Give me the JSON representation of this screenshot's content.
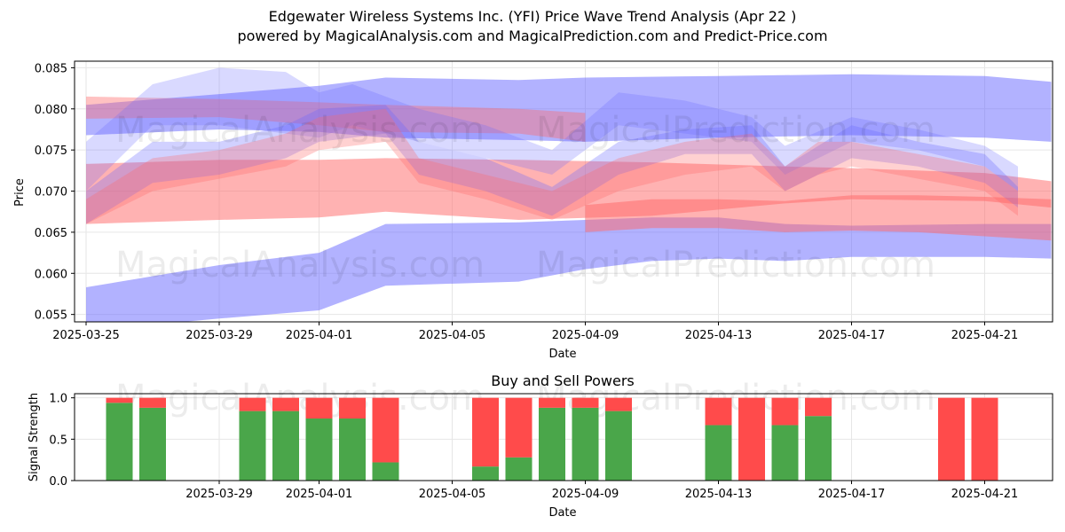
{
  "header": {
    "title_line1": "Edgewater Wireless Systems Inc. (YFI) Price Wave Trend Analysis (Apr 22 )",
    "title_line2": "powered by MagicalAnalysis.com and MagicalPrediction.com and Predict-Price.com"
  },
  "watermarks": [
    "MagicalAnalysis.com",
    "MagicalPrediction.com"
  ],
  "colors": {
    "blue_band": "#6666ff",
    "red_band": "#ff6666",
    "buy": "#4aa64a",
    "sell": "#ff4b4b",
    "grid": "#e6e6e6"
  },
  "chart_data": [
    {
      "type": "area",
      "title": "",
      "xlabel": "Date",
      "ylabel": "Price",
      "x_start": "2025-03-25",
      "x_ticks": [
        "2025-03-25",
        "2025-03-29",
        "2025-04-01",
        "2025-04-05",
        "2025-04-09",
        "2025-04-13",
        "2025-04-17",
        "2025-04-21"
      ],
      "y_ticks": [
        0.055,
        0.06,
        0.065,
        0.07,
        0.075,
        0.08,
        0.085
      ],
      "ylim": [
        0.0541,
        0.0858
      ],
      "grid": true,
      "series": [
        {
          "color": "blue",
          "opacity": 0.5,
          "x": [
            "2025-03-25",
            "2025-03-29",
            "2025-04-01",
            "2025-04-03",
            "2025-04-07",
            "2025-04-09",
            "2025-04-13",
            "2025-04-17",
            "2025-04-21",
            "2025-04-23"
          ],
          "lower": [
            0.0768,
            0.0775,
            0.0772,
            0.0765,
            0.0762,
            0.076,
            0.0765,
            0.0768,
            0.0765,
            0.076
          ],
          "upper": [
            0.0805,
            0.0818,
            0.0828,
            0.0838,
            0.0835,
            0.0838,
            0.084,
            0.0842,
            0.084,
            0.0833
          ]
        },
        {
          "color": "blue",
          "opacity": 0.5,
          "x": [
            "2025-03-25",
            "2025-03-29",
            "2025-04-01",
            "2025-04-03",
            "2025-04-07",
            "2025-04-09",
            "2025-04-11",
            "2025-04-13",
            "2025-04-15",
            "2025-04-17",
            "2025-04-21",
            "2025-04-23"
          ],
          "lower": [
            0.053,
            0.0545,
            0.0555,
            0.0585,
            0.059,
            0.0605,
            0.0615,
            0.0618,
            0.0615,
            0.062,
            0.062,
            0.0618
          ],
          "upper": [
            0.0583,
            0.061,
            0.0625,
            0.066,
            0.0662,
            0.0665,
            0.0668,
            0.0668,
            0.066,
            0.0658,
            0.066,
            0.066
          ]
        },
        {
          "color": "red",
          "opacity": 0.5,
          "x": [
            "2025-03-25",
            "2025-03-29",
            "2025-04-01",
            "2025-04-03",
            "2025-04-07",
            "2025-04-11",
            "2025-04-15",
            "2025-04-17",
            "2025-04-21",
            "2025-04-23"
          ],
          "lower": [
            0.066,
            0.0665,
            0.0668,
            0.0675,
            0.0665,
            0.067,
            0.0685,
            0.069,
            0.0688,
            0.068
          ],
          "upper": [
            0.0733,
            0.0738,
            0.0738,
            0.074,
            0.0738,
            0.0735,
            0.073,
            0.0728,
            0.0722,
            0.0712
          ]
        },
        {
          "color": "red",
          "opacity": 0.5,
          "x": [
            "2025-04-09",
            "2025-04-11",
            "2025-04-13",
            "2025-04-15",
            "2025-04-17",
            "2025-04-19",
            "2025-04-21",
            "2025-04-23"
          ],
          "lower": [
            0.065,
            0.0655,
            0.0655,
            0.065,
            0.0652,
            0.065,
            0.0645,
            0.064
          ],
          "upper": [
            0.0683,
            0.069,
            0.069,
            0.0688,
            0.0695,
            0.0695,
            0.0693,
            0.069
          ]
        },
        {
          "color": "red",
          "opacity": 0.4,
          "x": [
            "2025-03-25",
            "2025-03-29",
            "2025-04-01",
            "2025-04-03",
            "2025-04-07",
            "2025-04-09"
          ],
          "lower": [
            0.0788,
            0.079,
            0.078,
            0.0772,
            0.077,
            0.076
          ],
          "upper": [
            0.0815,
            0.0812,
            0.0808,
            0.0805,
            0.08,
            0.0795
          ]
        },
        {
          "color": "blue",
          "opacity": 0.3,
          "x": [
            "2025-03-25",
            "2025-03-27",
            "2025-03-29",
            "2025-03-31",
            "2025-04-01",
            "2025-04-03",
            "2025-04-04",
            "2025-04-06",
            "2025-04-08",
            "2025-04-10",
            "2025-04-12",
            "2025-04-14",
            "2025-04-15",
            "2025-04-17",
            "2025-04-19",
            "2025-04-21",
            "2025-04-22"
          ],
          "lower": [
            0.066,
            0.071,
            0.072,
            0.074,
            0.076,
            0.077,
            0.072,
            0.07,
            0.067,
            0.072,
            0.0745,
            0.0745,
            0.07,
            0.074,
            0.073,
            0.071,
            0.068
          ],
          "upper": [
            0.07,
            0.076,
            0.076,
            0.078,
            0.08,
            0.0805,
            0.076,
            0.074,
            0.0705,
            0.076,
            0.0775,
            0.078,
            0.073,
            0.078,
            0.076,
            0.0745,
            0.0705
          ]
        },
        {
          "color": "blue",
          "opacity": 0.25,
          "x": [
            "2025-03-25",
            "2025-03-27",
            "2025-03-29",
            "2025-03-31",
            "2025-04-01",
            "2025-04-02",
            "2025-04-04",
            "2025-04-06",
            "2025-04-08",
            "2025-04-10",
            "2025-04-12",
            "2025-04-14",
            "2025-04-15",
            "2025-04-17",
            "2025-04-19",
            "2025-04-21",
            "2025-04-22"
          ],
          "lower": [
            0.07,
            0.078,
            0.078,
            0.077,
            0.0765,
            0.078,
            0.076,
            0.074,
            0.072,
            0.078,
            0.077,
            0.076,
            0.072,
            0.076,
            0.075,
            0.073,
            0.07
          ],
          "upper": [
            0.076,
            0.083,
            0.085,
            0.0845,
            0.082,
            0.083,
            0.08,
            0.078,
            0.075,
            0.082,
            0.081,
            0.079,
            0.0755,
            0.079,
            0.0775,
            0.0755,
            0.073
          ]
        },
        {
          "color": "red",
          "opacity": 0.3,
          "x": [
            "2025-03-25",
            "2025-03-27",
            "2025-03-29",
            "2025-03-31",
            "2025-04-01",
            "2025-04-03",
            "2025-04-04",
            "2025-04-06",
            "2025-04-08",
            "2025-04-10",
            "2025-04-12",
            "2025-04-14",
            "2025-04-15",
            "2025-04-16",
            "2025-04-17",
            "2025-04-19",
            "2025-04-21",
            "2025-04-22"
          ],
          "lower": [
            0.066,
            0.07,
            0.0715,
            0.073,
            0.075,
            0.076,
            0.071,
            0.069,
            0.0665,
            0.07,
            0.072,
            0.073,
            0.07,
            0.072,
            0.073,
            0.0715,
            0.07,
            0.067
          ],
          "upper": [
            0.069,
            0.074,
            0.075,
            0.077,
            0.079,
            0.08,
            0.074,
            0.072,
            0.07,
            0.074,
            0.076,
            0.077,
            0.073,
            0.076,
            0.076,
            0.0745,
            0.073,
            0.07
          ]
        }
      ]
    },
    {
      "type": "bar",
      "title": "Buy and Sell Powers",
      "xlabel": "Date",
      "ylabel": "Signal Strength",
      "x_ticks": [
        "2025-03-29",
        "2025-04-01",
        "2025-04-05",
        "2025-04-09",
        "2025-04-13",
        "2025-04-17",
        "2025-04-21"
      ],
      "y_ticks": [
        0.0,
        0.5,
        1.0
      ],
      "ylim": [
        0,
        1.05
      ],
      "categories": [
        "2025-03-26",
        "2025-03-27",
        "2025-03-30",
        "2025-03-31",
        "2025-04-01",
        "2025-04-02",
        "2025-04-03",
        "2025-04-06",
        "2025-04-07",
        "2025-04-08",
        "2025-04-09",
        "2025-04-10",
        "2025-04-13",
        "2025-04-14",
        "2025-04-15",
        "2025-04-16",
        "2025-04-20",
        "2025-04-21"
      ],
      "series": [
        {
          "name": "Buy",
          "values": [
            0.94,
            0.88,
            0.84,
            0.84,
            0.75,
            0.75,
            0.22,
            0.17,
            0.28,
            0.88,
            0.88,
            0.84,
            0.67,
            0.0,
            0.67,
            0.78,
            0.0,
            0.0
          ]
        },
        {
          "name": "Sell",
          "values": [
            0.06,
            0.12,
            0.16,
            0.16,
            0.25,
            0.25,
            0.78,
            0.83,
            0.72,
            0.12,
            0.12,
            0.16,
            0.33,
            1.0,
            0.33,
            0.22,
            1.0,
            1.0
          ]
        }
      ]
    }
  ]
}
